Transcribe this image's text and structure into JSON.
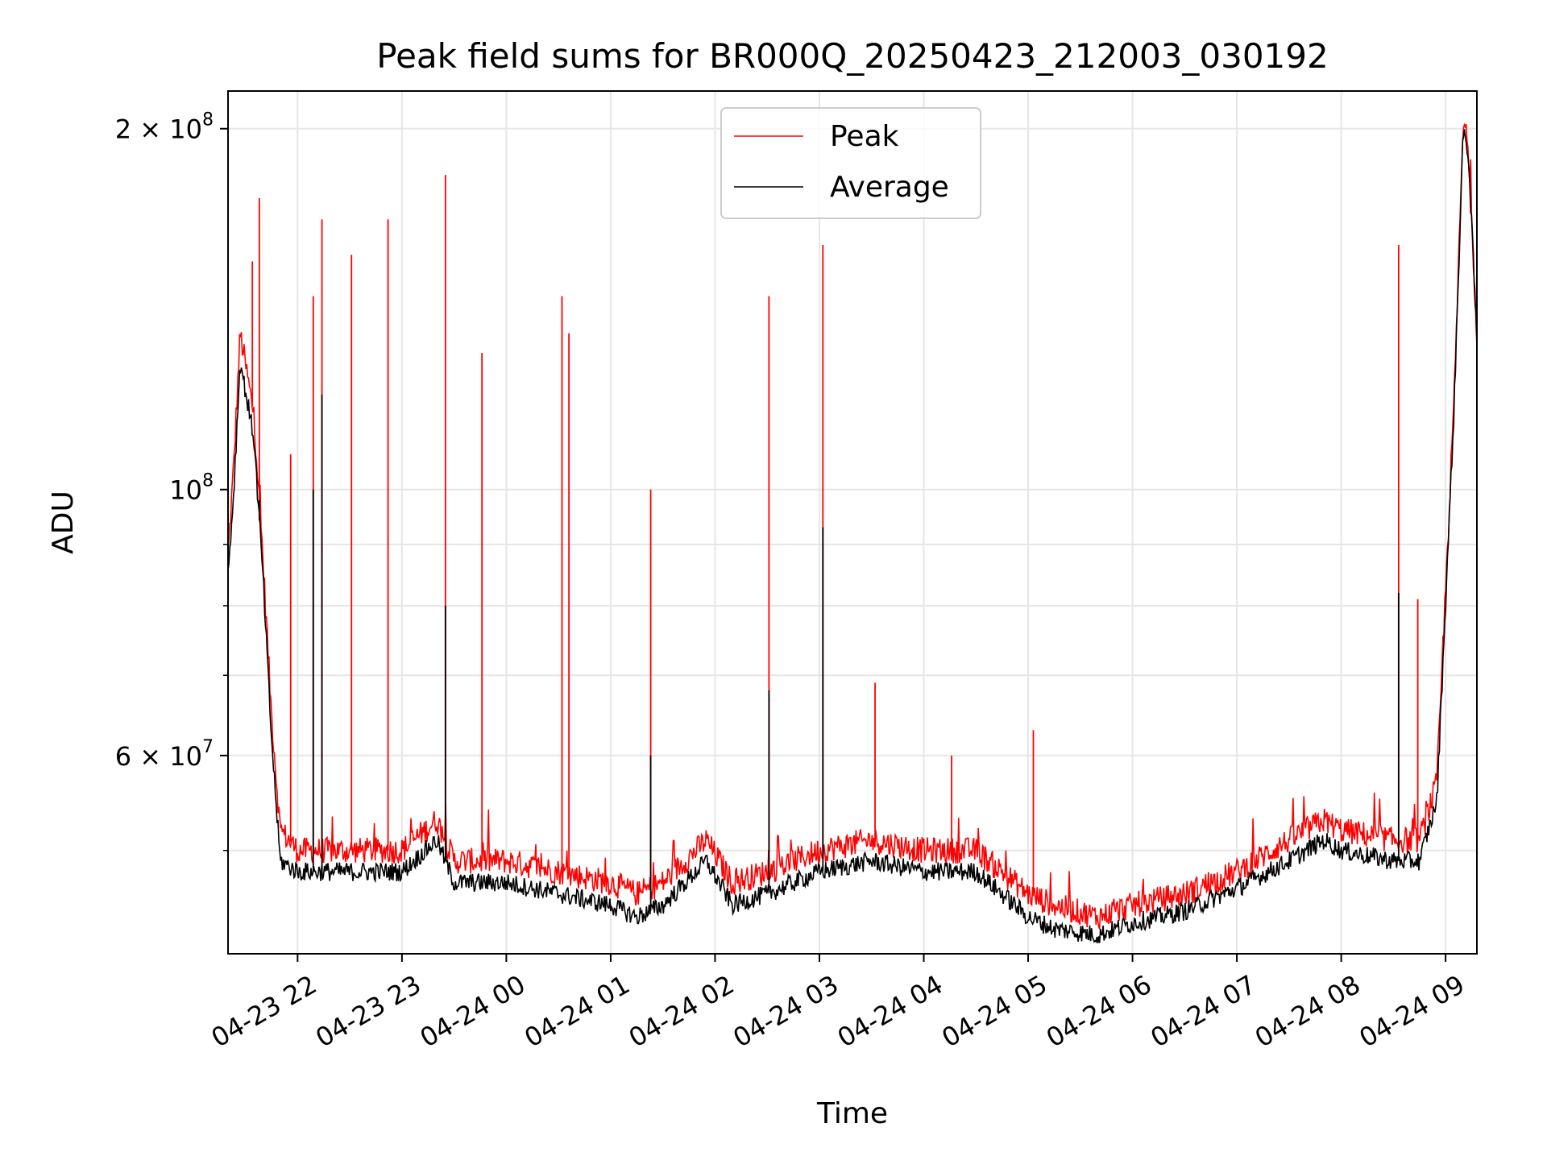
{
  "chart_data": {
    "type": "line",
    "title": "Peak field sums for BR000Q_20250423_212003_030192",
    "xlabel": "Time",
    "ylabel": "ADU",
    "y_scale": "log",
    "grid": true,
    "legend_position": "upper-center",
    "xlim": [
      "2025-04-23 21:20",
      "2025-04-24 09:18"
    ],
    "ylim": [
      41000000,
      215000000
    ],
    "x_ticks": [
      {
        "time": "2025-04-23 22:00",
        "label": "04-23 22"
      },
      {
        "time": "2025-04-23 23:00",
        "label": "04-23 23"
      },
      {
        "time": "2025-04-24 00:00",
        "label": "04-24 00"
      },
      {
        "time": "2025-04-24 01:00",
        "label": "04-24 01"
      },
      {
        "time": "2025-04-24 02:00",
        "label": "04-24 02"
      },
      {
        "time": "2025-04-24 03:00",
        "label": "04-24 03"
      },
      {
        "time": "2025-04-24 04:00",
        "label": "04-24 04"
      },
      {
        "time": "2025-04-24 05:00",
        "label": "04-24 05"
      },
      {
        "time": "2025-04-24 06:00",
        "label": "04-24 06"
      },
      {
        "time": "2025-04-24 07:00",
        "label": "04-24 07"
      },
      {
        "time": "2025-04-24 08:00",
        "label": "04-24 08"
      },
      {
        "time": "2025-04-24 09:00",
        "label": "04-24 09"
      }
    ],
    "y_ticks": [
      {
        "value": 60000000,
        "label_base": "6 × 10",
        "label_exp": "7"
      },
      {
        "value": 100000000,
        "label_base": "10",
        "label_exp": "8"
      },
      {
        "value": 200000000,
        "label_base": "2 × 10",
        "label_exp": "8"
      }
    ],
    "y_minor_ticks": [
      50000000,
      70000000,
      80000000,
      90000000
    ],
    "series": [
      {
        "name": "Peak",
        "color": "#ff0000",
        "x": [
          "2025-04-23 21:20",
          "2025-04-23 21:23",
          "2025-04-23 21:27",
          "2025-04-23 21:35",
          "2025-04-23 21:40",
          "2025-04-23 21:45",
          "2025-04-23 21:50",
          "2025-04-23 22:00",
          "2025-04-23 22:30",
          "2025-04-23 23:00",
          "2025-04-23 23:20",
          "2025-04-23 23:30",
          "2025-04-23 23:45",
          "2025-04-24 00:00",
          "2025-04-24 00:30",
          "2025-04-24 01:00",
          "2025-04-24 01:15",
          "2025-04-24 01:30",
          "2025-04-24 01:55",
          "2025-04-24 02:10",
          "2025-04-24 02:30",
          "2025-04-24 03:00",
          "2025-04-24 03:30",
          "2025-04-24 04:00",
          "2025-04-24 04:30",
          "2025-04-24 04:45",
          "2025-04-24 05:00",
          "2025-04-24 05:15",
          "2025-04-24 05:40",
          "2025-04-24 06:00",
          "2025-04-24 06:30",
          "2025-04-24 07:00",
          "2025-04-24 07:30",
          "2025-04-24 07:50",
          "2025-04-24 08:00",
          "2025-04-24 08:30",
          "2025-04-24 08:45",
          "2025-04-24 08:55",
          "2025-04-24 09:05",
          "2025-04-24 09:10",
          "2025-04-24 09:13",
          "2025-04-24 09:18"
        ],
        "y": [
          88000000,
          103000000,
          135000000,
          115000000,
          88000000,
          65000000,
          52000000,
          50000000,
          50000000,
          50000000,
          53000000,
          49000000,
          49000000,
          49000000,
          48000000,
          47000000,
          46000000,
          47000000,
          51000000,
          47000000,
          48000000,
          50000000,
          51000000,
          50000000,
          50000000,
          48000000,
          46000000,
          45000000,
          44000000,
          45000000,
          46000000,
          48000000,
          51000000,
          53000000,
          52000000,
          51000000,
          51000000,
          57000000,
          120000000,
          200000000,
          195000000,
          135000000
        ],
        "spikes": [
          {
            "x": "2025-04-23 21:34",
            "y": 155000000
          },
          {
            "x": "2025-04-23 21:38",
            "y": 175000000
          },
          {
            "x": "2025-04-23 21:56",
            "y": 107000000
          },
          {
            "x": "2025-04-23 22:09",
            "y": 145000000
          },
          {
            "x": "2025-04-23 22:14",
            "y": 168000000
          },
          {
            "x": "2025-04-23 22:31",
            "y": 157000000
          },
          {
            "x": "2025-04-23 22:52",
            "y": 168000000
          },
          {
            "x": "2025-04-23 23:25",
            "y": 183000000
          },
          {
            "x": "2025-04-23 23:46",
            "y": 130000000
          },
          {
            "x": "2025-04-24 00:32",
            "y": 145000000
          },
          {
            "x": "2025-04-24 00:36",
            "y": 135000000
          },
          {
            "x": "2025-04-24 01:23",
            "y": 100000000
          },
          {
            "x": "2025-04-24 02:31",
            "y": 145000000
          },
          {
            "x": "2025-04-24 03:02",
            "y": 160000000
          },
          {
            "x": "2025-04-24 03:32",
            "y": 69000000
          },
          {
            "x": "2025-04-24 04:16",
            "y": 60000000
          },
          {
            "x": "2025-04-24 05:03",
            "y": 63000000
          },
          {
            "x": "2025-04-24 08:33",
            "y": 160000000
          },
          {
            "x": "2025-04-24 08:44",
            "y": 81000000
          }
        ]
      },
      {
        "name": "Average",
        "color": "#000000",
        "x": [
          "2025-04-23 21:20",
          "2025-04-23 21:23",
          "2025-04-23 21:27",
          "2025-04-23 21:35",
          "2025-04-23 21:40",
          "2025-04-23 21:45",
          "2025-04-23 21:50",
          "2025-04-23 22:00",
          "2025-04-23 22:30",
          "2025-04-23 23:00",
          "2025-04-23 23:20",
          "2025-04-23 23:30",
          "2025-04-23 23:45",
          "2025-04-24 00:00",
          "2025-04-24 00:30",
          "2025-04-24 01:00",
          "2025-04-24 01:15",
          "2025-04-24 01:30",
          "2025-04-24 01:55",
          "2025-04-24 02:10",
          "2025-04-24 02:30",
          "2025-04-24 03:00",
          "2025-04-24 03:30",
          "2025-04-24 04:00",
          "2025-04-24 04:30",
          "2025-04-24 04:45",
          "2025-04-24 05:00",
          "2025-04-24 05:15",
          "2025-04-24 05:40",
          "2025-04-24 06:00",
          "2025-04-24 06:30",
          "2025-04-24 07:00",
          "2025-04-24 07:30",
          "2025-04-24 07:50",
          "2025-04-24 08:00",
          "2025-04-24 08:30",
          "2025-04-24 08:45",
          "2025-04-24 08:55",
          "2025-04-24 09:05",
          "2025-04-24 09:10",
          "2025-04-24 09:13",
          "2025-04-24 09:18"
        ],
        "y": [
          85000000,
          98000000,
          128000000,
          110000000,
          85000000,
          62000000,
          49000000,
          48000000,
          48000000,
          48000000,
          51000000,
          47000000,
          47000000,
          47000000,
          46000000,
          45000000,
          44000000,
          45000000,
          49000000,
          45000000,
          46000000,
          48000000,
          49000000,
          48000000,
          48000000,
          46000000,
          44000000,
          43000000,
          42500000,
          43500000,
          44500000,
          46500000,
          49000000,
          51000000,
          50000000,
          49000000,
          49000000,
          55000000,
          118000000,
          198000000,
          192000000,
          133000000
        ],
        "spikes": [
          {
            "x": "2025-04-23 21:38",
            "y": 98000000
          },
          {
            "x": "2025-04-23 22:14",
            "y": 120000000
          },
          {
            "x": "2025-04-23 22:09",
            "y": 100000000
          },
          {
            "x": "2025-04-23 23:25",
            "y": 80000000
          },
          {
            "x": "2025-04-24 03:02",
            "y": 93000000
          },
          {
            "x": "2025-04-24 02:31",
            "y": 68000000
          },
          {
            "x": "2025-04-24 08:33",
            "y": 82000000
          },
          {
            "x": "2025-04-24 01:23",
            "y": 60000000
          }
        ]
      }
    ]
  }
}
